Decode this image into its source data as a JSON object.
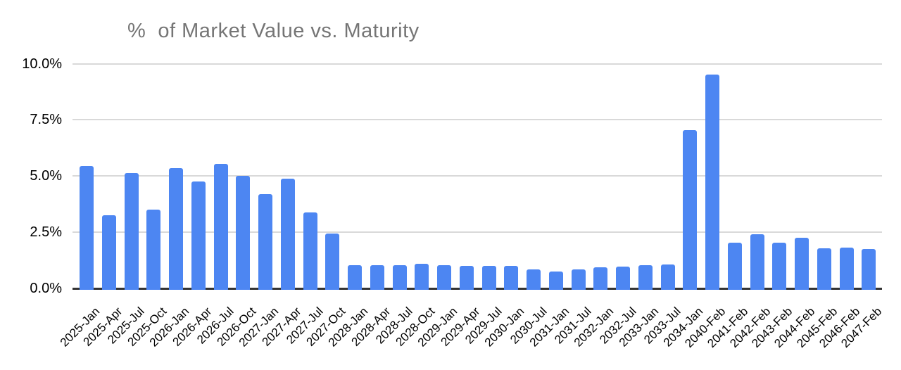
{
  "chart_data": {
    "type": "bar",
    "title": "%  of Market Value vs. Maturity",
    "xlabel": "",
    "ylabel": "",
    "ylim": [
      0,
      10
    ],
    "grid": true,
    "legend_position": "none",
    "y_tick_values": [
      0,
      2.5,
      5,
      7.5,
      10
    ],
    "y_tick_labels": [
      "0.0%",
      "2.5%",
      "5.0%",
      "7.5%",
      "10.0%"
    ],
    "categories": [
      "2025-Jan",
      "2025-Apr",
      "2025-Jul",
      "2025-Oct",
      "2026-Jan",
      "2026-Apr",
      "2026-Jul",
      "2026-Oct",
      "2027-Jan",
      "2027-Apr",
      "2027-Jul",
      "2027-Oct",
      "2028-Jan",
      "2028-Apr",
      "2028-Jul",
      "2028-Oct",
      "2029-Jan",
      "2029-Apr",
      "2029-Jul",
      "2030-Jan",
      "2030-Jul",
      "2031-Jan",
      "2031-Jul",
      "2032-Jan",
      "2032-Jul",
      "2033-Jan",
      "2033-Jul",
      "2034-Jan",
      "2040-Feb",
      "2041-Feb",
      "2042-Feb",
      "2043-Feb",
      "2044-Feb",
      "2045-Feb",
      "2046-Feb",
      "2047-Feb"
    ],
    "values": [
      5.45,
      3.27,
      5.12,
      3.51,
      5.34,
      4.77,
      5.55,
      5.0,
      4.19,
      4.89,
      3.38,
      2.44,
      1.03,
      1.04,
      1.04,
      1.1,
      1.03,
      0.99,
      1.0,
      1.0,
      0.86,
      0.76,
      0.83,
      0.93,
      0.97,
      1.03,
      1.07,
      7.05,
      9.5,
      2.05,
      2.4,
      2.05,
      2.25,
      1.78,
      1.82,
      1.75
    ],
    "colors": {
      "bar": "#4d86f2",
      "title_text": "#757575",
      "gridline": "#d9d9d9",
      "axis_line": "#333333",
      "tick_text": "#000000",
      "background": "#ffffff"
    }
  }
}
